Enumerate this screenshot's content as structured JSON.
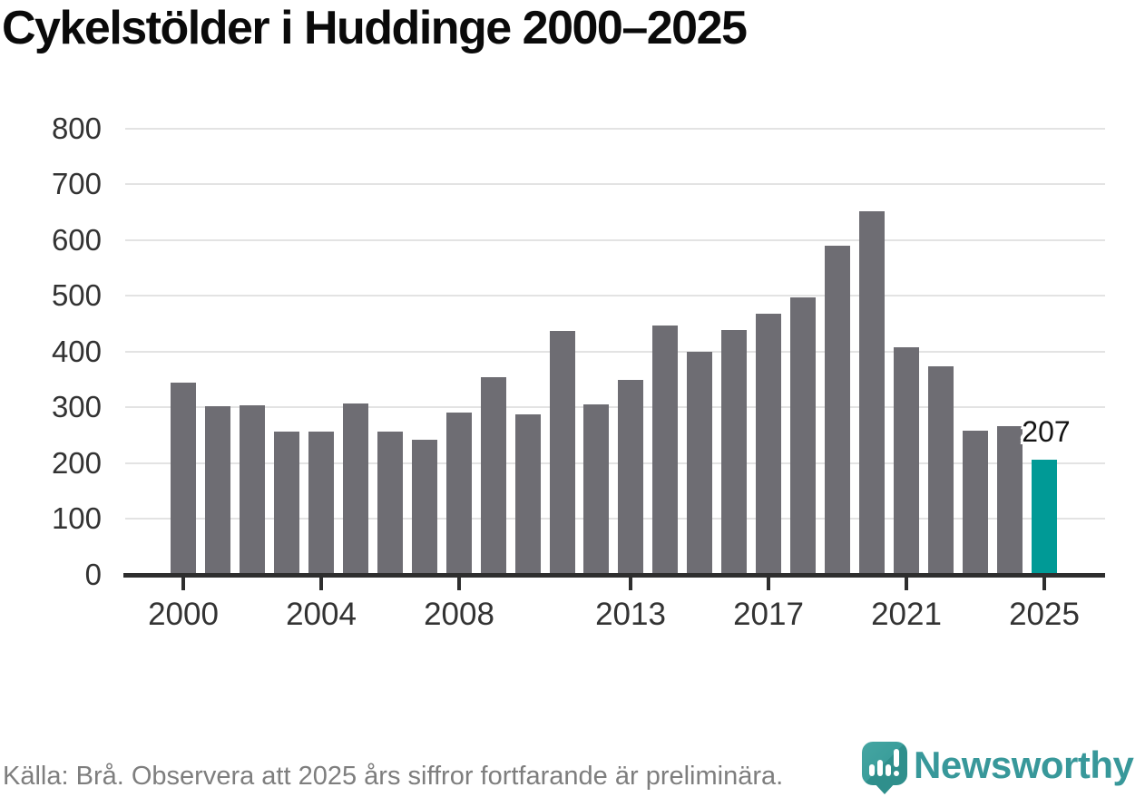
{
  "chart_data": {
    "type": "bar",
    "title": "Cykelstölder i Huddinge 2000–2025",
    "categories": [
      2000,
      2001,
      2002,
      2003,
      2004,
      2005,
      2006,
      2007,
      2008,
      2009,
      2010,
      2011,
      2012,
      2013,
      2014,
      2015,
      2016,
      2017,
      2018,
      2019,
      2020,
      2021,
      2022,
      2023,
      2024,
      2025
    ],
    "values": [
      345,
      302,
      304,
      256,
      256,
      307,
      257,
      242,
      290,
      354,
      287,
      437,
      306,
      350,
      446,
      399,
      439,
      468,
      497,
      589,
      652,
      407,
      373,
      259,
      266,
      207
    ],
    "highlight": {
      "category": 2025,
      "value": 207,
      "label": "207"
    },
    "xticks": [
      "2000",
      "2004",
      "2008",
      "2013",
      "2017",
      "2021",
      "2025"
    ],
    "yticks": [
      0,
      100,
      200,
      300,
      400,
      500,
      600,
      700,
      800
    ],
    "ylim": [
      0,
      800
    ],
    "xlabel": "",
    "ylabel": "",
    "grid": "horizontal-light",
    "legend": "none",
    "colors": {
      "bar": "#6e6d73",
      "highlight": "#009a96",
      "axis": "#2e2e2e",
      "gridline": "#e3e3e3",
      "tick_label": "#333333"
    }
  },
  "footer": {
    "source_text": "Källa: Brå. Observera att 2025 års siffror fortfarande är preliminära.",
    "brand": {
      "name": "Newsworthy",
      "color": "#38989a",
      "logo_icon": "newsworthy-bubble-barchart-icon"
    }
  }
}
